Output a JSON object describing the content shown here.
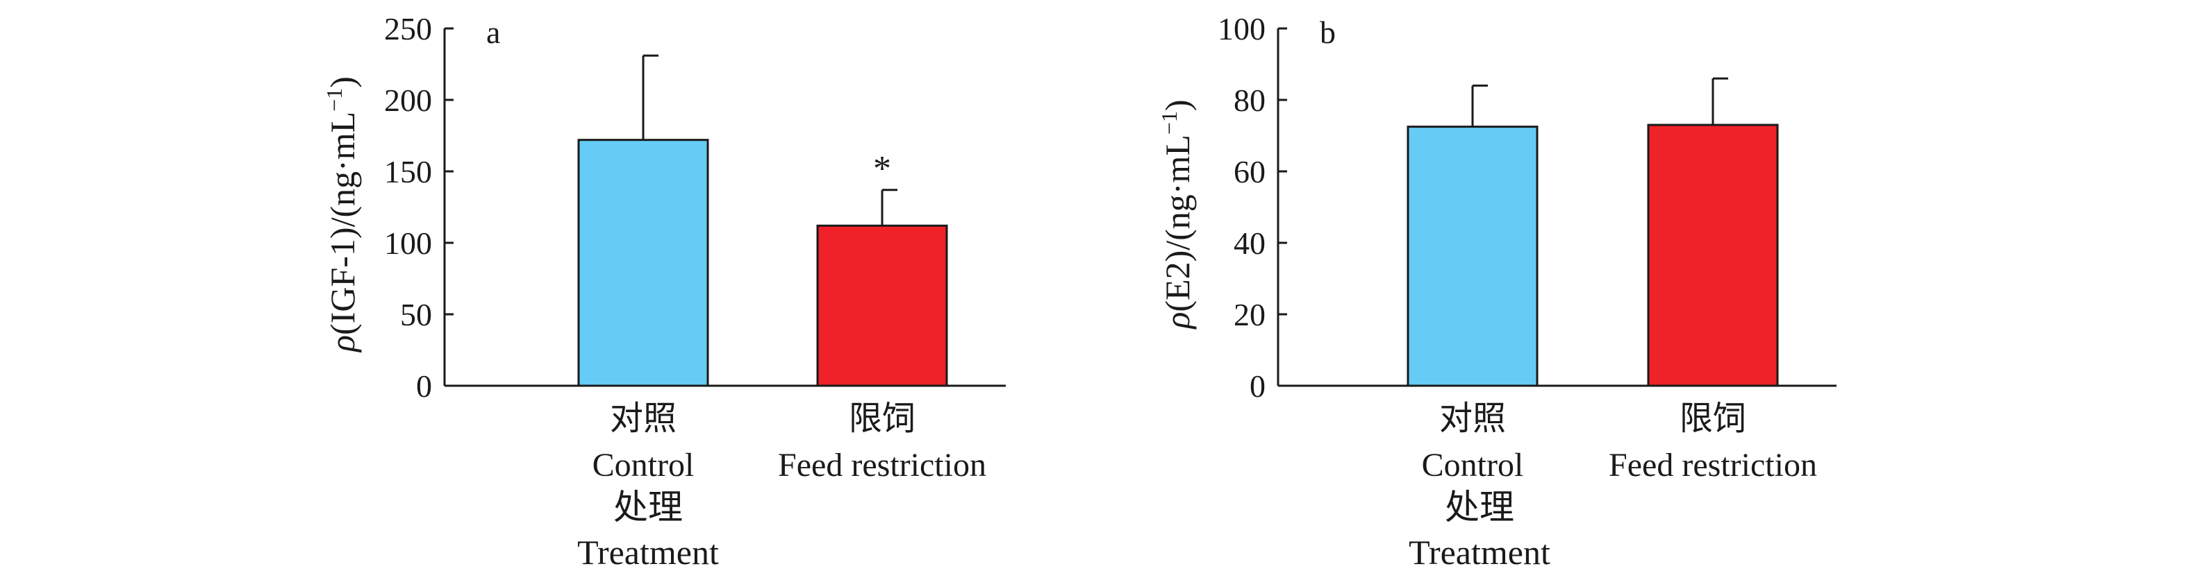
{
  "chart_data": [
    {
      "type": "bar",
      "panel_label": "a",
      "categories": [
        {
          "zh": "对照",
          "en": "Control"
        },
        {
          "zh": "限饲",
          "en": "Feed restriction"
        }
      ],
      "values": [
        172,
        112
      ],
      "errors": [
        59,
        25
      ],
      "significance": [
        "",
        "*"
      ],
      "colors": [
        "#66CCF5",
        "#EE2228"
      ],
      "ylabel_prefix": "ρ",
      "ylabel_rest": "(IGF-1)/(ng·mL",
      "ylabel_sup": "−1",
      "ylabel_close": ")",
      "xlabel_zh": "处理",
      "xlabel_en": "Treatment",
      "ylim": [
        0,
        250
      ],
      "yticks": [
        0,
        50,
        100,
        150,
        200,
        250
      ]
    },
    {
      "type": "bar",
      "panel_label": "b",
      "categories": [
        {
          "zh": "对照",
          "en": "Control"
        },
        {
          "zh": "限饲",
          "en": "Feed restriction"
        }
      ],
      "values": [
        72.5,
        73
      ],
      "errors": [
        11.5,
        13
      ],
      "significance": [
        "",
        ""
      ],
      "colors": [
        "#66CCF5",
        "#EE2228"
      ],
      "ylabel_prefix": "ρ",
      "ylabel_rest": "(E2)/(ng·mL",
      "ylabel_sup": "−1",
      "ylabel_close": ")",
      "xlabel_zh": "处理",
      "xlabel_en": "Treatment",
      "ylim": [
        0,
        100
      ],
      "yticks": [
        0,
        20,
        40,
        60,
        80,
        100
      ]
    }
  ]
}
